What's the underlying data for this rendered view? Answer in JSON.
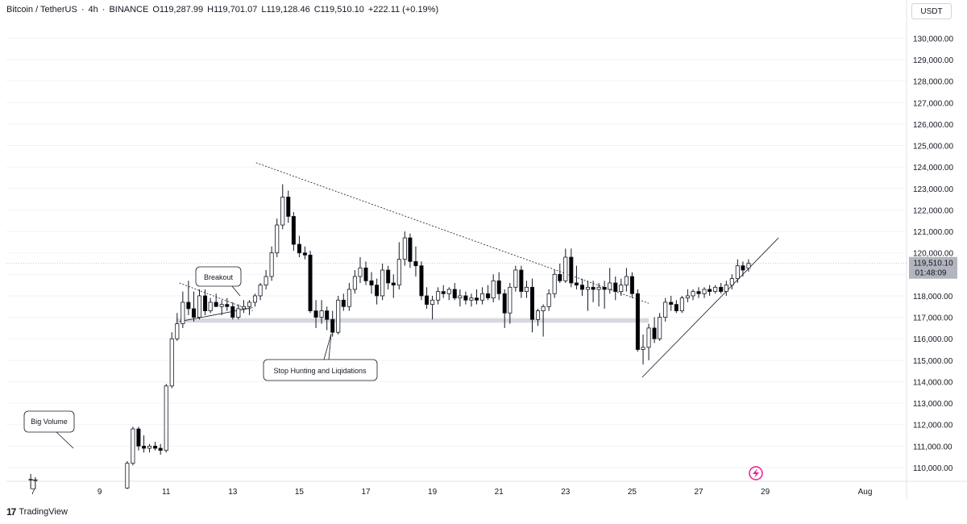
{
  "header": {
    "pair": "Bitcoin / TetherUS",
    "interval": "4h",
    "exchange": "BINANCE",
    "open": "O119,287.99",
    "high": "H119,701.07",
    "low": "L119,128.46",
    "close": "C119,510.10",
    "change": "+222.11 (+0.19%)",
    "separator": "·"
  },
  "currency": "USDT",
  "brand": {
    "logo": "17",
    "name": "TradingView"
  },
  "price_label": {
    "price": "119,510.10",
    "countdown": "01:48:09"
  },
  "colors": {
    "candle_up": "#ffffff",
    "candle_down": "#000000",
    "wick": "#131722",
    "zone": "#d1d4dc",
    "grid": "#f0f3fa",
    "axis_text": "#131722",
    "price_tag": "#b2b5be"
  },
  "chart_data": {
    "type": "candlestick",
    "symbol": "BTCUSDT",
    "ylim": [
      109000,
      131500
    ],
    "y_ticks": [
      "110,000.00",
      "111,000.00",
      "112,000.00",
      "113,000.00",
      "114,000.00",
      "115,000.00",
      "116,000.00",
      "117,000.00",
      "118,000.00",
      "119,000.00",
      "120,000.00",
      "121,000.00",
      "122,000.00",
      "123,000.00",
      "124,000.00",
      "125,000.00",
      "126,000.00",
      "127,000.00",
      "128,000.00",
      "129,000.00",
      "130,000.00"
    ],
    "y_tick_values": [
      110000,
      111000,
      112000,
      113000,
      114000,
      115000,
      116000,
      117000,
      118000,
      119000,
      120000,
      121000,
      122000,
      123000,
      124000,
      125000,
      126000,
      127000,
      128000,
      129000,
      130000
    ],
    "x_ticks": [
      "7",
      "9",
      "11",
      "13",
      "15",
      "17",
      "19",
      "21",
      "23",
      "25",
      "27",
      "29",
      "Aug"
    ],
    "x_tick_days": [
      7,
      9,
      11,
      13,
      15,
      17,
      19,
      21,
      23,
      25,
      27,
      29,
      32
    ],
    "candles": [
      {
        "d": 6.93,
        "o": 109450,
        "h": 109700,
        "l": 109000,
        "c": 109450
      },
      {
        "d": 7.07,
        "o": 109420,
        "h": 109550,
        "l": 109000,
        "c": 109430
      },
      {
        "d": 9.83,
        "o": 109050,
        "h": 110300,
        "l": 109000,
        "c": 110200
      },
      {
        "d": 10.0,
        "o": 110200,
        "h": 111900,
        "l": 110100,
        "c": 111800
      },
      {
        "d": 10.17,
        "o": 111800,
        "h": 111900,
        "l": 110800,
        "c": 111000
      },
      {
        "d": 10.33,
        "o": 111000,
        "h": 111500,
        "l": 110700,
        "c": 110900
      },
      {
        "d": 10.5,
        "o": 110900,
        "h": 111100,
        "l": 110700,
        "c": 111000
      },
      {
        "d": 10.67,
        "o": 111000,
        "h": 111200,
        "l": 110800,
        "c": 110900
      },
      {
        "d": 10.83,
        "o": 110900,
        "h": 111100,
        "l": 110600,
        "c": 110800
      },
      {
        "d": 11.0,
        "o": 110800,
        "h": 113900,
        "l": 110700,
        "c": 113800
      },
      {
        "d": 11.17,
        "o": 113800,
        "h": 116300,
        "l": 113700,
        "c": 116000
      },
      {
        "d": 11.33,
        "o": 116000,
        "h": 117200,
        "l": 115900,
        "c": 116700
      },
      {
        "d": 11.5,
        "o": 116700,
        "h": 118200,
        "l": 116500,
        "c": 117700
      },
      {
        "d": 11.67,
        "o": 117700,
        "h": 118700,
        "l": 117100,
        "c": 117400
      },
      {
        "d": 11.83,
        "o": 117400,
        "h": 118200,
        "l": 116800,
        "c": 117000
      },
      {
        "d": 12.0,
        "o": 117000,
        "h": 118300,
        "l": 116900,
        "c": 118000
      },
      {
        "d": 12.17,
        "o": 118000,
        "h": 118300,
        "l": 117100,
        "c": 117300
      },
      {
        "d": 12.33,
        "o": 117300,
        "h": 117900,
        "l": 117200,
        "c": 117700
      },
      {
        "d": 12.5,
        "o": 117700,
        "h": 118100,
        "l": 117500,
        "c": 117500
      },
      {
        "d": 12.67,
        "o": 117500,
        "h": 117800,
        "l": 117100,
        "c": 117600
      },
      {
        "d": 12.83,
        "o": 117600,
        "h": 117900,
        "l": 117300,
        "c": 117500
      },
      {
        "d": 13.0,
        "o": 117500,
        "h": 117700,
        "l": 116900,
        "c": 117000
      },
      {
        "d": 13.17,
        "o": 117000,
        "h": 117600,
        "l": 116900,
        "c": 117400
      },
      {
        "d": 13.33,
        "o": 117400,
        "h": 117800,
        "l": 117200,
        "c": 117500
      },
      {
        "d": 13.5,
        "o": 117500,
        "h": 117800,
        "l": 117100,
        "c": 117700
      },
      {
        "d": 13.67,
        "o": 117700,
        "h": 118100,
        "l": 117500,
        "c": 118000
      },
      {
        "d": 13.83,
        "o": 118000,
        "h": 118600,
        "l": 117800,
        "c": 118500
      },
      {
        "d": 14.0,
        "o": 118500,
        "h": 119200,
        "l": 118300,
        "c": 118900
      },
      {
        "d": 14.17,
        "o": 118900,
        "h": 120300,
        "l": 118700,
        "c": 120000
      },
      {
        "d": 14.33,
        "o": 120000,
        "h": 121600,
        "l": 119800,
        "c": 121300
      },
      {
        "d": 14.5,
        "o": 121300,
        "h": 123200,
        "l": 121100,
        "c": 122600
      },
      {
        "d": 14.67,
        "o": 122600,
        "h": 122900,
        "l": 121400,
        "c": 121700
      },
      {
        "d": 14.83,
        "o": 121700,
        "h": 121900,
        "l": 120100,
        "c": 120400
      },
      {
        "d": 15.0,
        "o": 120400,
        "h": 120800,
        "l": 119800,
        "c": 120000
      },
      {
        "d": 15.17,
        "o": 120000,
        "h": 120300,
        "l": 119700,
        "c": 119900
      },
      {
        "d": 15.33,
        "o": 119900,
        "h": 120100,
        "l": 117200,
        "c": 117300
      },
      {
        "d": 15.5,
        "o": 117300,
        "h": 117800,
        "l": 116500,
        "c": 117000
      },
      {
        "d": 15.67,
        "o": 117000,
        "h": 117800,
        "l": 116700,
        "c": 117300
      },
      {
        "d": 15.83,
        "o": 117300,
        "h": 117500,
        "l": 116400,
        "c": 116900
      },
      {
        "d": 16.0,
        "o": 116900,
        "h": 117300,
        "l": 116100,
        "c": 116300
      },
      {
        "d": 16.17,
        "o": 116300,
        "h": 118000,
        "l": 116200,
        "c": 117800
      },
      {
        "d": 16.33,
        "o": 117800,
        "h": 118100,
        "l": 117300,
        "c": 117500
      },
      {
        "d": 16.5,
        "o": 117500,
        "h": 118600,
        "l": 117300,
        "c": 118300
      },
      {
        "d": 16.67,
        "o": 118300,
        "h": 119200,
        "l": 118100,
        "c": 118900
      },
      {
        "d": 16.83,
        "o": 118900,
        "h": 119800,
        "l": 118600,
        "c": 119300
      },
      {
        "d": 17.0,
        "o": 119300,
        "h": 119600,
        "l": 118500,
        "c": 118700
      },
      {
        "d": 17.17,
        "o": 118700,
        "h": 119100,
        "l": 118100,
        "c": 118500
      },
      {
        "d": 17.33,
        "o": 118500,
        "h": 118800,
        "l": 117600,
        "c": 118000
      },
      {
        "d": 17.5,
        "o": 118000,
        "h": 119500,
        "l": 117800,
        "c": 119200
      },
      {
        "d": 17.67,
        "o": 119200,
        "h": 119400,
        "l": 118300,
        "c": 118600
      },
      {
        "d": 17.83,
        "o": 118600,
        "h": 119000,
        "l": 117900,
        "c": 118500
      },
      {
        "d": 18.0,
        "o": 118500,
        "h": 120500,
        "l": 118300,
        "c": 119700
      },
      {
        "d": 18.17,
        "o": 119700,
        "h": 121000,
        "l": 119400,
        "c": 120700
      },
      {
        "d": 18.33,
        "o": 120700,
        "h": 120900,
        "l": 119300,
        "c": 119600
      },
      {
        "d": 18.5,
        "o": 119600,
        "h": 120300,
        "l": 118900,
        "c": 119400
      },
      {
        "d": 18.67,
        "o": 119400,
        "h": 119600,
        "l": 117800,
        "c": 118000
      },
      {
        "d": 18.83,
        "o": 118000,
        "h": 118400,
        "l": 117400,
        "c": 117600
      },
      {
        "d": 19.0,
        "o": 117600,
        "h": 118000,
        "l": 116900,
        "c": 117800
      },
      {
        "d": 19.17,
        "o": 117800,
        "h": 118400,
        "l": 117600,
        "c": 118200
      },
      {
        "d": 19.33,
        "o": 118200,
        "h": 118500,
        "l": 117900,
        "c": 118100
      },
      {
        "d": 19.5,
        "o": 118100,
        "h": 118400,
        "l": 117800,
        "c": 118300
      },
      {
        "d": 19.67,
        "o": 118300,
        "h": 118600,
        "l": 117800,
        "c": 117900
      },
      {
        "d": 19.83,
        "o": 117900,
        "h": 118300,
        "l": 117500,
        "c": 118000
      },
      {
        "d": 20.0,
        "o": 118000,
        "h": 118200,
        "l": 117600,
        "c": 117800
      },
      {
        "d": 20.17,
        "o": 117800,
        "h": 118100,
        "l": 117500,
        "c": 117900
      },
      {
        "d": 20.33,
        "o": 117900,
        "h": 118300,
        "l": 117600,
        "c": 117800
      },
      {
        "d": 20.5,
        "o": 117800,
        "h": 118400,
        "l": 117600,
        "c": 118100
      },
      {
        "d": 20.67,
        "o": 118100,
        "h": 118500,
        "l": 117800,
        "c": 117900
      },
      {
        "d": 20.83,
        "o": 117900,
        "h": 119000,
        "l": 117700,
        "c": 118700
      },
      {
        "d": 21.0,
        "o": 118700,
        "h": 119100,
        "l": 117800,
        "c": 118100
      },
      {
        "d": 21.17,
        "o": 118100,
        "h": 118300,
        "l": 116500,
        "c": 117200
      },
      {
        "d": 21.33,
        "o": 117200,
        "h": 118600,
        "l": 116700,
        "c": 118400
      },
      {
        "d": 21.5,
        "o": 118400,
        "h": 119400,
        "l": 118200,
        "c": 119200
      },
      {
        "d": 21.67,
        "o": 119200,
        "h": 119400,
        "l": 117900,
        "c": 118200
      },
      {
        "d": 21.83,
        "o": 118200,
        "h": 118700,
        "l": 117900,
        "c": 118400
      },
      {
        "d": 22.0,
        "o": 118400,
        "h": 118800,
        "l": 116300,
        "c": 116900
      },
      {
        "d": 22.17,
        "o": 116900,
        "h": 117400,
        "l": 116600,
        "c": 117300
      },
      {
        "d": 22.33,
        "o": 117300,
        "h": 117600,
        "l": 116100,
        "c": 117500
      },
      {
        "d": 22.5,
        "o": 117500,
        "h": 118300,
        "l": 117300,
        "c": 118100
      },
      {
        "d": 22.67,
        "o": 118100,
        "h": 119200,
        "l": 117900,
        "c": 119000
      },
      {
        "d": 22.83,
        "o": 119000,
        "h": 119500,
        "l": 118600,
        "c": 118700
      },
      {
        "d": 23.0,
        "o": 118700,
        "h": 120200,
        "l": 118600,
        "c": 119800
      },
      {
        "d": 23.17,
        "o": 119800,
        "h": 120200,
        "l": 118400,
        "c": 118600
      },
      {
        "d": 23.33,
        "o": 118600,
        "h": 119400,
        "l": 118300,
        "c": 118500
      },
      {
        "d": 23.5,
        "o": 118500,
        "h": 118800,
        "l": 118000,
        "c": 118300
      },
      {
        "d": 23.67,
        "o": 118300,
        "h": 118700,
        "l": 117300,
        "c": 118400
      },
      {
        "d": 23.83,
        "o": 118400,
        "h": 118700,
        "l": 117700,
        "c": 118300
      },
      {
        "d": 24.0,
        "o": 118300,
        "h": 118600,
        "l": 117500,
        "c": 118400
      },
      {
        "d": 24.17,
        "o": 118400,
        "h": 118700,
        "l": 117400,
        "c": 118300
      },
      {
        "d": 24.33,
        "o": 118300,
        "h": 119300,
        "l": 118100,
        "c": 118600
      },
      {
        "d": 24.5,
        "o": 118600,
        "h": 118900,
        "l": 117800,
        "c": 118200
      },
      {
        "d": 24.67,
        "o": 118200,
        "h": 118800,
        "l": 118000,
        "c": 118500
      },
      {
        "d": 24.83,
        "o": 118500,
        "h": 119300,
        "l": 118200,
        "c": 118900
      },
      {
        "d": 25.0,
        "o": 118900,
        "h": 119100,
        "l": 117900,
        "c": 118100
      },
      {
        "d": 25.17,
        "o": 118100,
        "h": 118300,
        "l": 115400,
        "c": 115500
      },
      {
        "d": 25.33,
        "o": 115500,
        "h": 116200,
        "l": 114800,
        "c": 115600
      },
      {
        "d": 25.5,
        "o": 115600,
        "h": 116700,
        "l": 115000,
        "c": 116500
      },
      {
        "d": 25.67,
        "o": 116500,
        "h": 117000,
        "l": 115800,
        "c": 116000
      },
      {
        "d": 25.83,
        "o": 116000,
        "h": 117200,
        "l": 115900,
        "c": 117000
      },
      {
        "d": 26.0,
        "o": 117000,
        "h": 117900,
        "l": 116800,
        "c": 117700
      },
      {
        "d": 26.17,
        "o": 117700,
        "h": 118000,
        "l": 117300,
        "c": 117600
      },
      {
        "d": 26.33,
        "o": 117600,
        "h": 117800,
        "l": 117200,
        "c": 117300
      },
      {
        "d": 26.5,
        "o": 117300,
        "h": 118000,
        "l": 117200,
        "c": 117900
      },
      {
        "d": 26.67,
        "o": 117900,
        "h": 118300,
        "l": 117700,
        "c": 118000
      },
      {
        "d": 26.83,
        "o": 118000,
        "h": 118300,
        "l": 117800,
        "c": 118200
      },
      {
        "d": 27.0,
        "o": 118200,
        "h": 118400,
        "l": 117900,
        "c": 118100
      },
      {
        "d": 27.17,
        "o": 118100,
        "h": 118400,
        "l": 117900,
        "c": 118300
      },
      {
        "d": 27.33,
        "o": 118300,
        "h": 118500,
        "l": 118000,
        "c": 118200
      },
      {
        "d": 27.5,
        "o": 118200,
        "h": 118500,
        "l": 118100,
        "c": 118400
      },
      {
        "d": 27.67,
        "o": 118400,
        "h": 118600,
        "l": 118100,
        "c": 118200
      },
      {
        "d": 27.83,
        "o": 118200,
        "h": 118700,
        "l": 118000,
        "c": 118500
      },
      {
        "d": 28.0,
        "o": 118500,
        "h": 119000,
        "l": 118300,
        "c": 118800
      },
      {
        "d": 28.17,
        "o": 118800,
        "h": 119700,
        "l": 118600,
        "c": 119400
      },
      {
        "d": 28.33,
        "o": 119400,
        "h": 119600,
        "l": 118900,
        "c": 119200
      },
      {
        "d": 28.5,
        "o": 119288,
        "h": 119701,
        "l": 119128,
        "c": 119510
      }
    ],
    "annotations": [
      {
        "text": "Breakout"
      },
      {
        "text": "Stop Hunting and Liqidations"
      },
      {
        "text": "Big Volume"
      }
    ],
    "support_zone": [
      116750,
      116950
    ]
  }
}
